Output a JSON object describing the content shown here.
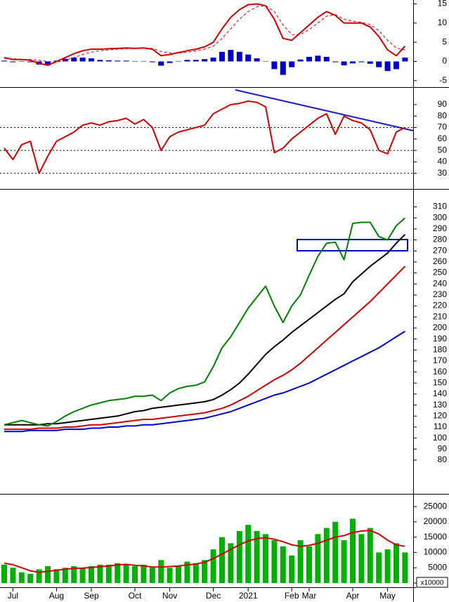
{
  "chart_data": [
    {
      "type": "indicator",
      "ylim": [
        -6.5,
        16
      ],
      "yticks": [
        15,
        10,
        5,
        0,
        -5
      ],
      "series": [
        {
          "kind": "bar",
          "color": "#0000cc",
          "values": [
            0.2,
            -0.2,
            -0.1,
            -0.2,
            -0.8,
            -1,
            0.2,
            0.7,
            1,
            1,
            0.8,
            0.4,
            0.3,
            0.2,
            0.2,
            0,
            0.1,
            -0.2,
            -1.1,
            -0.4,
            0.1,
            0.4,
            0.4,
            0.6,
            1,
            2.5,
            3,
            2.5,
            1.8,
            0.8,
            0,
            -2,
            -3.5,
            -1.5,
            0.5,
            1.2,
            1.5,
            1.2,
            -0.2,
            -1,
            -0.5,
            -0.2,
            -0.6,
            -1.5,
            -2.5,
            -2,
            1
          ]
        },
        {
          "kind": "line",
          "color": "#d00000",
          "values": [
            1,
            0.5,
            0.5,
            0.3,
            -0.5,
            -1,
            0,
            1,
            2,
            2.8,
            3.2,
            3.2,
            3.3,
            3.4,
            3.5,
            3.4,
            3.5,
            3.2,
            1.5,
            1.8,
            2.3,
            2.8,
            3.2,
            3.8,
            5,
            8.5,
            11.5,
            13.5,
            14.8,
            15,
            14.5,
            11,
            6,
            5.5,
            7.5,
            9.5,
            11.5,
            13,
            12,
            10,
            10,
            10,
            9,
            6.5,
            3,
            1.5,
            4
          ]
        },
        {
          "kind": "line",
          "dash": true,
          "color": "#d00000",
          "values": [
            0.8,
            0.7,
            0.6,
            0.5,
            0.3,
            0,
            -0.2,
            0.3,
            1,
            1.8,
            2.4,
            2.8,
            3,
            3.2,
            3.3,
            3.4,
            3.4,
            3.4,
            2.6,
            2.2,
            2.2,
            2.4,
            2.8,
            3.2,
            4,
            6,
            8.5,
            11,
            13,
            14.2,
            14.5,
            13,
            9.5,
            7,
            7,
            8.3,
            10,
            11.8,
            12.2,
            11,
            10.5,
            10.2,
            9.6,
            8,
            5.5,
            3.5,
            3
          ]
        }
      ]
    },
    {
      "type": "indicator",
      "ylim": [
        17,
        104
      ],
      "yticks": [
        90,
        80,
        70,
        60,
        50,
        40,
        30
      ],
      "hlines": [
        70,
        50,
        30
      ],
      "series": [
        {
          "kind": "line",
          "color": "#d00000",
          "values": [
            52,
            42,
            55,
            58,
            30,
            45,
            58,
            62,
            66,
            72,
            74,
            72,
            75,
            76,
            78,
            73,
            77,
            70,
            50,
            62,
            66,
            68,
            70,
            72,
            82,
            86,
            90,
            91,
            93,
            92,
            88,
            48,
            52,
            60,
            66,
            72,
            78,
            82,
            64,
            80,
            76,
            74,
            68,
            50,
            47,
            66,
            70
          ]
        }
      ]
    },
    {
      "type": "indicator",
      "ylim": [
        50,
        325
      ],
      "yticks": [
        310,
        300,
        290,
        280,
        270,
        260,
        250,
        240,
        230,
        220,
        210,
        200,
        190,
        180,
        170,
        160,
        150,
        140,
        130,
        120,
        110,
        100,
        90,
        80
      ],
      "series": [
        {
          "kind": "line",
          "color": "#0000cc",
          "values": [
            106,
            106,
            106,
            107,
            107,
            107,
            107,
            108,
            108,
            108,
            109,
            109,
            110,
            110,
            111,
            111,
            112,
            112,
            113,
            114,
            115,
            116,
            117,
            118,
            120,
            122,
            124,
            127,
            130,
            133,
            136,
            139,
            141,
            144,
            147,
            150,
            154,
            158,
            162,
            166,
            170,
            174,
            178,
            182,
            187,
            192,
            197
          ]
        },
        {
          "kind": "line",
          "color": "#d00000",
          "values": [
            108,
            108,
            108,
            108,
            109,
            109,
            109,
            110,
            110,
            111,
            112,
            112,
            113,
            114,
            115,
            116,
            117,
            117,
            118,
            119,
            120,
            121,
            122,
            123,
            125,
            127,
            130,
            134,
            138,
            143,
            148,
            153,
            157,
            162,
            168,
            175,
            182,
            189,
            196,
            203,
            210,
            217,
            224,
            232,
            240,
            248,
            256
          ]
        },
        {
          "kind": "line",
          "color": "#000000",
          "values": [
            112,
            112,
            112,
            112,
            112,
            113,
            113,
            114,
            115,
            116,
            117,
            118,
            119,
            120,
            122,
            124,
            125,
            127,
            128,
            129,
            130,
            131,
            132,
            133,
            135,
            139,
            144,
            150,
            158,
            167,
            176,
            183,
            189,
            196,
            202,
            208,
            214,
            220,
            226,
            231,
            242,
            249,
            256,
            262,
            268,
            277,
            285
          ]
        },
        {
          "kind": "line",
          "color": "#008000",
          "values": [
            112,
            114,
            116,
            114,
            112,
            111,
            115,
            120,
            124,
            127,
            130,
            132,
            134,
            135,
            136,
            138,
            138,
            139,
            134,
            141,
            145,
            147,
            148,
            151,
            165,
            182,
            192,
            205,
            218,
            228,
            238,
            220,
            205,
            220,
            230,
            248,
            265,
            277,
            278,
            262,
            295,
            296,
            296,
            283,
            280,
            293,
            300
          ]
        }
      ]
    },
    {
      "type": "indicator",
      "ylim": [
        -1150,
        28700
      ],
      "yticks": [
        25000,
        20000,
        15000,
        10000,
        5000,
        0
      ],
      "unit_label": "x10000",
      "categories": [
        null,
        "Jul",
        null,
        null,
        null,
        null,
        "Aug",
        null,
        null,
        null,
        "Sep",
        null,
        null,
        null,
        null,
        "Oct",
        null,
        null,
        null,
        "Nov",
        null,
        null,
        null,
        null,
        "Dec",
        null,
        null,
        null,
        "2021",
        null,
        null,
        null,
        null,
        "Feb",
        null,
        "Mar",
        null,
        null,
        null,
        null,
        "Apr",
        null,
        null,
        null,
        "May",
        null,
        null
      ],
      "series": [
        {
          "kind": "bar",
          "color": "#00b000",
          "values": [
            6000,
            5000,
            3500,
            3000,
            4500,
            5500,
            4500,
            5000,
            5500,
            5000,
            5500,
            6000,
            6000,
            6500,
            6000,
            5500,
            6000,
            5000,
            7500,
            5000,
            5500,
            7000,
            6500,
            7500,
            11000,
            15000,
            13000,
            17000,
            19000,
            17000,
            16000,
            14000,
            12000,
            9000,
            14000,
            12000,
            16000,
            18000,
            20000,
            14000,
            21000,
            16000,
            18000,
            10000,
            11000,
            13000,
            10000
          ]
        },
        {
          "kind": "line",
          "color": "#d00000",
          "values": [
            6500,
            6000,
            5000,
            4000,
            3500,
            3800,
            4200,
            4500,
            4800,
            4900,
            5100,
            5300,
            5600,
            5900,
            6100,
            5800,
            5600,
            5200,
            5200,
            5400,
            5600,
            5900,
            6200,
            6800,
            8000,
            9500,
            11000,
            12500,
            13800,
            14500,
            14800,
            14300,
            13500,
            12500,
            12000,
            12300,
            13000,
            14000,
            15000,
            15500,
            16500,
            17000,
            17200,
            16000,
            14000,
            12500,
            12000
          ]
        }
      ]
    }
  ]
}
